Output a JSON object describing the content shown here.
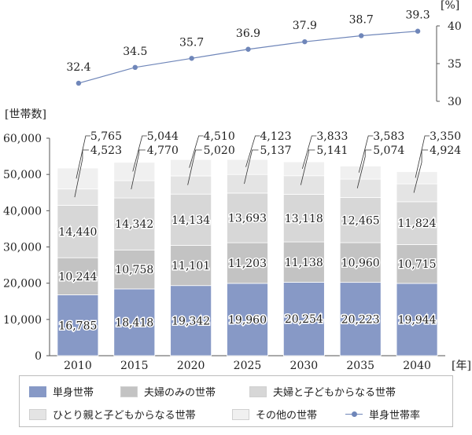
{
  "chart_data": [
    {
      "type": "line",
      "series": [
        {
          "name": "単身世帯率",
          "values": [
            32.4,
            34.5,
            35.7,
            36.9,
            37.9,
            38.7,
            39.3
          ]
        }
      ],
      "x": [
        "2010",
        "2015",
        "2020",
        "2025",
        "2030",
        "2035",
        "2040"
      ],
      "yunit": "[%]",
      "ylim": [
        30,
        40
      ],
      "yticks": [
        "30",
        "35",
        "40"
      ],
      "color": "#6f86b9"
    },
    {
      "type": "bar",
      "stacked": true,
      "categories": [
        "2010",
        "2015",
        "2020",
        "2025",
        "2030",
        "2035",
        "2040"
      ],
      "series": [
        {
          "name": "単身世帯",
          "values": [
            16785,
            18418,
            19342,
            19960,
            20254,
            20223,
            19944
          ],
          "color": "#8799c6"
        },
        {
          "name": "夫婦のみの世帯",
          "values": [
            10244,
            10758,
            11101,
            11203,
            11138,
            10960,
            10715
          ],
          "color": "#c3c3c3"
        },
        {
          "name": "夫婦と子どもからなる世帯",
          "values": [
            14440,
            14342,
            14134,
            13693,
            13118,
            12465,
            11824
          ],
          "color": "#d7d7d7"
        },
        {
          "name": "ひとり親と子どもからなる世帯",
          "values": [
            4523,
            4770,
            5020,
            5137,
            5141,
            5074,
            4924
          ],
          "color": "#e4e4e4"
        },
        {
          "name": "その他の世帯",
          "values": [
            5765,
            5044,
            4510,
            4123,
            3833,
            3583,
            3350
          ],
          "color": "#f0f0f0"
        }
      ],
      "labels": {
        "s0": [
          "16,785",
          "18,418",
          "19,342",
          "19,960",
          "20,254",
          "20,223",
          "19,944"
        ],
        "s1": [
          "10,244",
          "10,758",
          "11,101",
          "11,203",
          "11,138",
          "10,960",
          "10,715"
        ],
        "s2": [
          "14,440",
          "14,342",
          "14,134",
          "13,693",
          "13,118",
          "12,465",
          "11,824"
        ],
        "s3": [
          "4,523",
          "4,770",
          "5,020",
          "5,137",
          "5,141",
          "5,074",
          "4,924"
        ],
        "s4": [
          "5,765",
          "5,044",
          "4,510",
          "4,123",
          "3,833",
          "3,583",
          "3,350"
        ]
      },
      "ylabel": "[世帯数]",
      "xunit": "[年]",
      "ylim": [
        0,
        60000
      ],
      "yticks": [
        "0",
        "10,000",
        "20,000",
        "30,000",
        "40,000",
        "50,000",
        "60,000"
      ]
    }
  ],
  "legend": {
    "items": [
      "単身世帯",
      "夫婦のみの世帯",
      "夫婦と子どもからなる世帯",
      "ひとり親と子どもからなる世帯",
      "その他の世帯",
      "単身世帯率"
    ]
  }
}
